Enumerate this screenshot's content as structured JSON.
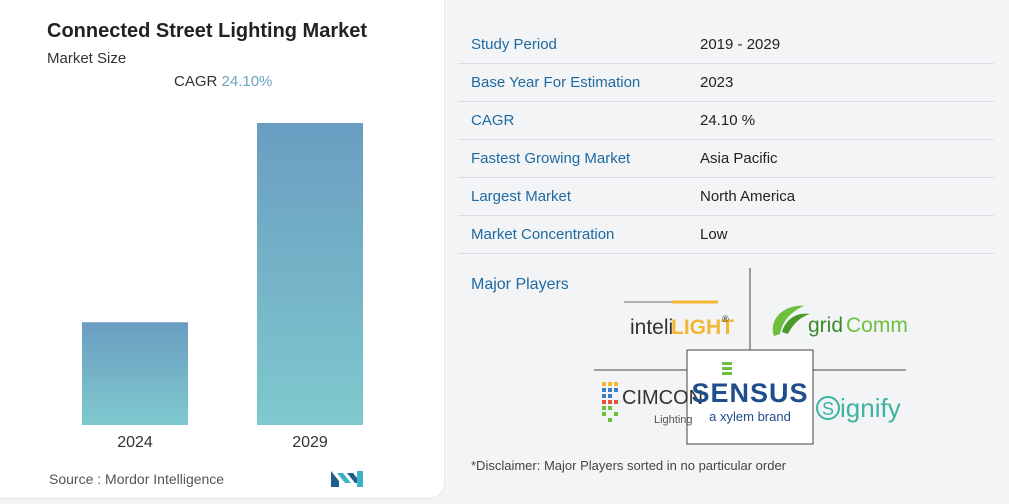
{
  "left": {
    "title": "Connected Street Lighting Market",
    "subtitle": "Market Size",
    "cagr_label": "CAGR",
    "cagr_value": "24.10%",
    "source": "Source :  Mordor Intelligence",
    "logo_icon": "mordor-intelligence-logo"
  },
  "chart_data": {
    "type": "bar",
    "categories": [
      "2024",
      "2029"
    ],
    "values": [
      1,
      2.94
    ],
    "title": "Connected Street Lighting Market",
    "subtitle": "Market Size",
    "xlabel": "",
    "ylabel": "",
    "grid": false,
    "colors": {
      "top": "#6a9dc1",
      "bottom": "#7fc9ce"
    }
  },
  "info": {
    "rows": [
      {
        "key": "Study Period",
        "value": "2019 - 2029"
      },
      {
        "key": "Base Year For Estimation",
        "value": "2023"
      },
      {
        "key": "CAGR",
        "value": "24.10 %"
      },
      {
        "key": "Fastest Growing Market",
        "value": "Asia Pacific"
      },
      {
        "key": "Largest Market",
        "value": "North America"
      },
      {
        "key": "Market Concentration",
        "value": "Low"
      }
    ]
  },
  "players": {
    "label": "Major Players",
    "logos": {
      "intelilight": {
        "a": "inteli",
        "b": "LIGHT",
        "c": "®"
      },
      "gridcomm": {
        "a": "grid",
        "b": "Comm"
      },
      "cimcon": {
        "a": "CIMCON",
        "b": "Lighting"
      },
      "sensus": {
        "a": "SENSUS",
        "b": "a xylem brand"
      },
      "signify": {
        "a": "ignify"
      }
    },
    "disclaimer": "*Disclaimer: Major Players sorted in no particular order"
  },
  "colors": {
    "accent": "#1f6aa0",
    "brand_blue": "#1e4f8c",
    "green": "#6fbf3f",
    "yellow": "#f2b632"
  }
}
